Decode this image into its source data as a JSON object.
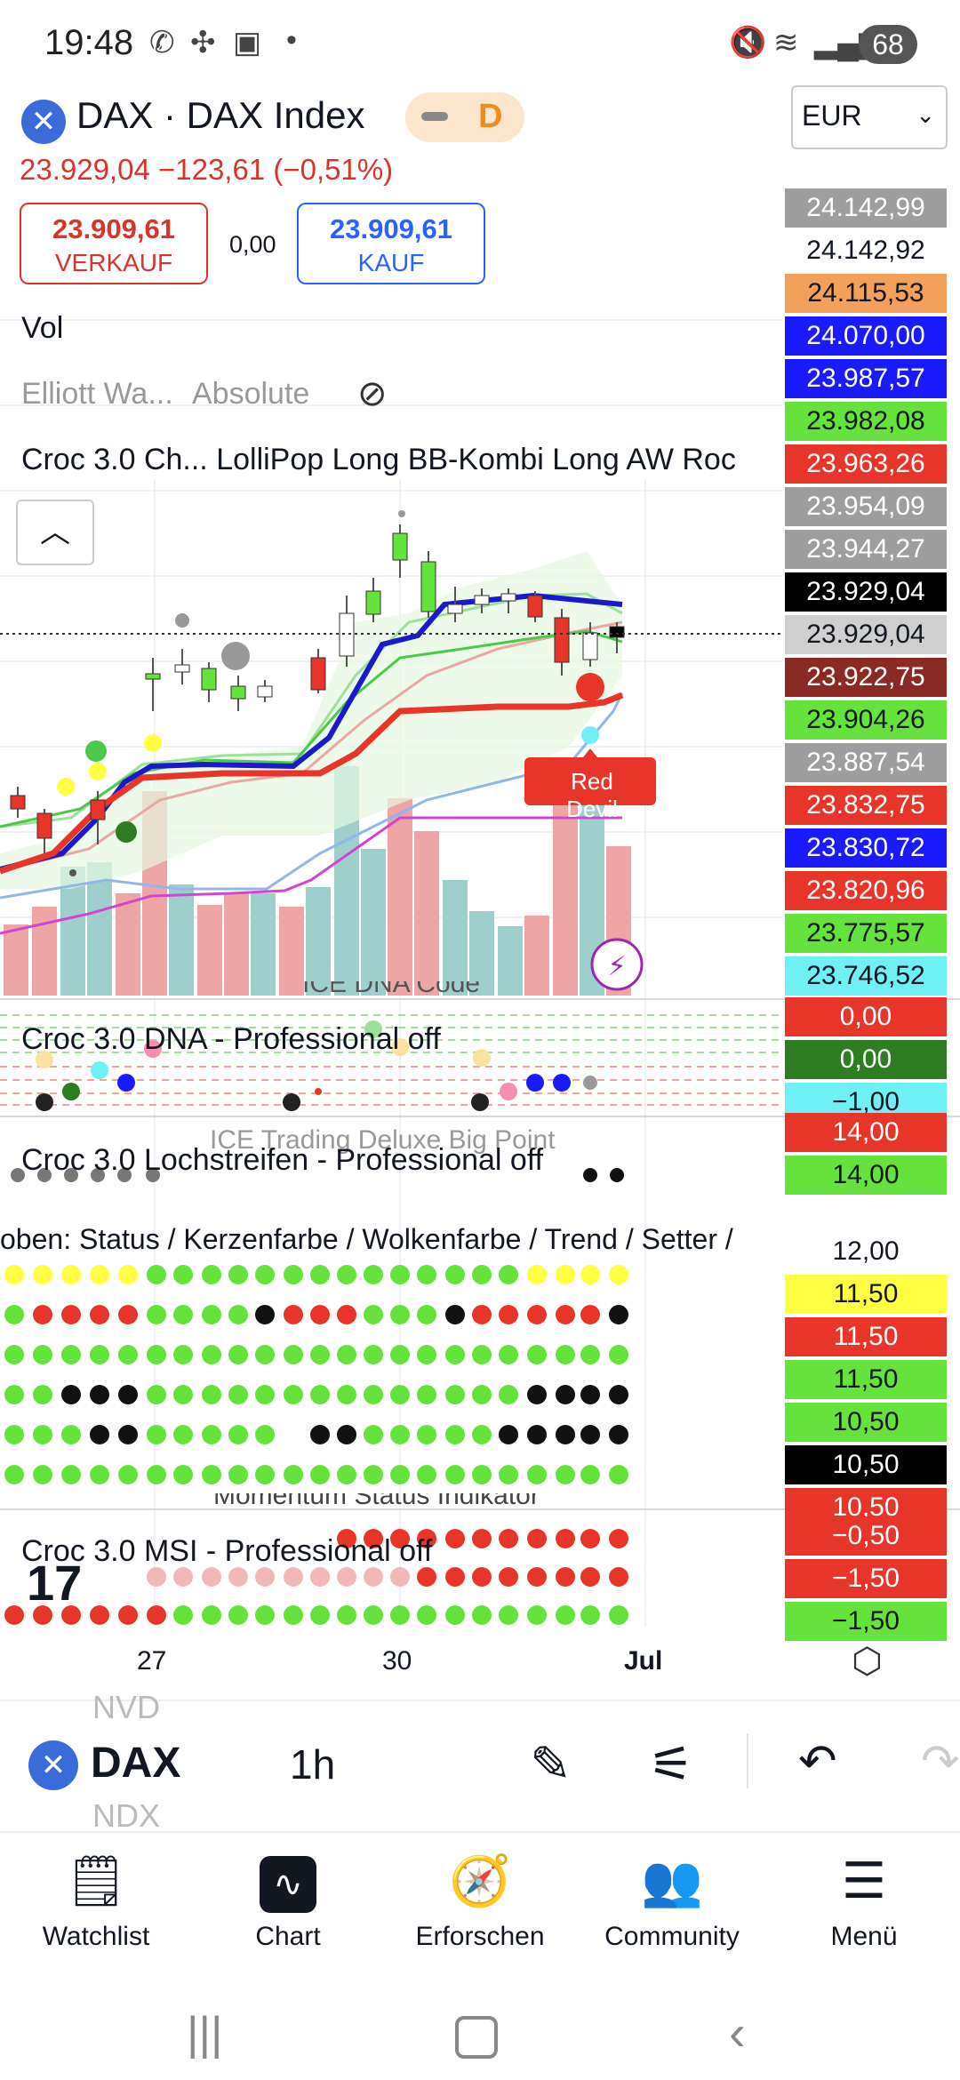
{
  "status_bar": {
    "time": "19:48",
    "battery": "68"
  },
  "header": {
    "symbol": "DAX · DAX Index",
    "interval_badge": "D",
    "currency": "EUR",
    "price_line": "23.929,04  −123,61 (−0,51%)",
    "sell": {
      "value": "23.909,61",
      "label": "VERKAUF"
    },
    "buy": {
      "value": "23.909,61",
      "label": "KAUF"
    },
    "spread": "0,00"
  },
  "indicators": {
    "vol": "Vol",
    "elliott": "Elliott Wa...",
    "elliott_mode": "Absolute",
    "croc_line": "Croc 3.0 Ch...  LolliPop Long  BB-Kombi Long  AW Roc",
    "dna_title": "ICE DNA Code",
    "dna": "Croc 3.0 DNA - Professional off",
    "bigpoint": "ICE Trading Deluxe Big Point",
    "lochstreifen": "Croc 3.0 Lochstreifen - Professional off",
    "oben": "oben: Status / Kerzenfarbe / Wolkenfarbe / Trend / Setter /",
    "msi_title": "Momentum Status Indikator",
    "msi": "Croc 3.0 MSI - Professional off",
    "red_devil": "Red Devil"
  },
  "price_axis": [
    {
      "v": "24.142,99",
      "bg": "#9e9e9e",
      "fg": "#ffffff"
    },
    {
      "v": "24.142,92",
      "bg": "#ffffff",
      "fg": "#131722"
    },
    {
      "v": "24.115,53",
      "bg": "#f2a05a",
      "fg": "#131722"
    },
    {
      "v": "24.070,00",
      "bg": "#1a1aff",
      "fg": "#ffffff"
    },
    {
      "v": "23.987,57",
      "bg": "#1a1aff",
      "fg": "#ffffff"
    },
    {
      "v": "23.982,08",
      "bg": "#66e23c",
      "fg": "#131722"
    },
    {
      "v": "23.963,26",
      "bg": "#e8352a",
      "fg": "#ffffff"
    },
    {
      "v": "23.954,09",
      "bg": "#9e9e9e",
      "fg": "#ffffff"
    },
    {
      "v": "23.944,27",
      "bg": "#9e9e9e",
      "fg": "#ffffff"
    },
    {
      "v": "23.929,04",
      "bg": "#000000",
      "fg": "#ffffff"
    },
    {
      "v": "23.929,04",
      "bg": "#cfcfcf",
      "fg": "#131722"
    },
    {
      "v": "23.922,75",
      "bg": "#8b2a25",
      "fg": "#ffffff"
    },
    {
      "v": "23.904,26",
      "bg": "#66e23c",
      "fg": "#131722"
    },
    {
      "v": "23.887,54",
      "bg": "#9e9e9e",
      "fg": "#ffffff"
    },
    {
      "v": "23.832,75",
      "bg": "#e8352a",
      "fg": "#ffffff"
    },
    {
      "v": "23.830,72",
      "bg": "#1a1aff",
      "fg": "#ffffff"
    },
    {
      "v": "23.820,96",
      "bg": "#e8352a",
      "fg": "#ffffff"
    },
    {
      "v": "23.775,57",
      "bg": "#66e23c",
      "fg": "#131722"
    },
    {
      "v": "23.746,52",
      "bg": "#6ff0f5",
      "fg": "#131722"
    }
  ],
  "dna_axis": [
    {
      "v": "0,00",
      "bg": "#e8352a",
      "fg": "#ffffff"
    },
    {
      "v": "0,00",
      "bg": "#2e7d22",
      "fg": "#ffffff"
    },
    {
      "v": "−1,00",
      "bg": "#6ff0f5",
      "fg": "#131722"
    }
  ],
  "loch_axis": [
    {
      "v": "14,00",
      "bg": "#e8352a",
      "fg": "#ffffff"
    },
    {
      "v": "14,00",
      "bg": "#66e23c",
      "fg": "#131722"
    }
  ],
  "oben_axis": [
    {
      "v": "12,00",
      "bg": "#ffffff",
      "fg": "#131722"
    },
    {
      "v": "11,50",
      "bg": "#ffff44",
      "fg": "#131722"
    },
    {
      "v": "11,50",
      "bg": "#e8352a",
      "fg": "#ffffff"
    },
    {
      "v": "11,50",
      "bg": "#66e23c",
      "fg": "#131722"
    },
    {
      "v": "10,50",
      "bg": "#66e23c",
      "fg": "#131722"
    },
    {
      "v": "10,50",
      "bg": "#000000",
      "fg": "#ffffff"
    },
    {
      "v": "10,50",
      "bg": "#e8352a",
      "fg": "#ffffff"
    }
  ],
  "msi_axis": [
    {
      "v": "−0,50",
      "bg": "#e8352a",
      "fg": "#ffffff"
    },
    {
      "v": "−1,50",
      "bg": "#e8352a",
      "fg": "#ffffff"
    },
    {
      "v": "−1,50",
      "bg": "#66e23c",
      "fg": "#131722"
    }
  ],
  "date_axis": {
    "d1": "27",
    "d2": "30",
    "d3": "Jul"
  },
  "toolbar": {
    "symbol": "DAX",
    "interval": "1h",
    "ghost_above": "NVD",
    "ghost_below": "NDX"
  },
  "nav": {
    "watchlist": "Watchlist",
    "chart": "Chart",
    "explore": "Erforschen",
    "community": "Community",
    "menu": "Menü"
  }
}
